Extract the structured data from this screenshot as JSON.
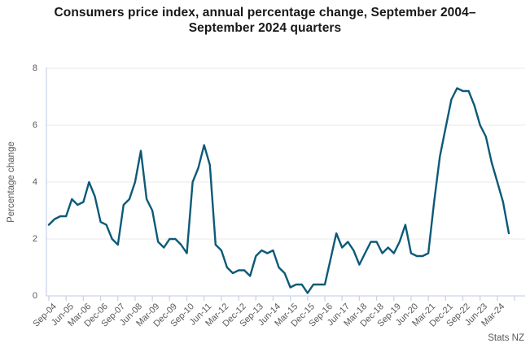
{
  "title": "Consumers price index, annual percentage change, September 2004–September 2024 quarters",
  "source": "Stats NZ",
  "colors": {
    "line": "#0c5a78",
    "gridline": "#e9e9e9",
    "axis": "#ccd3e8",
    "label_text": "#595959",
    "title_text": "#181818",
    "background": "#ffffff"
  },
  "chart_data": {
    "type": "line",
    "title": "Consumers price index, annual percentage change, September 2004–September 2024 quarters",
    "xlabel": "",
    "ylabel": "Percentage change",
    "ylim": [
      0,
      8
    ],
    "yticks": [
      0,
      2,
      4,
      6,
      8
    ],
    "grid": "horizontal",
    "legend": "none",
    "series_name": "CPI annual percentage change",
    "label_every": 3,
    "x_labels": [
      "Sep-04",
      "Jun-05",
      "Mar-06",
      "Dec-06",
      "Sep-07",
      "Jun-08",
      "Mar-09",
      "Dec-09",
      "Sep-10",
      "Jun-11",
      "Mar-12",
      "Dec-12",
      "Sep-13",
      "Jun-14",
      "Mar-15",
      "Dec-15",
      "Sep-16",
      "Jun-17",
      "Mar-18",
      "Dec-18",
      "Sep-19",
      "Jun-20",
      "Mar-21",
      "Dec-21",
      "Sep-22",
      "Jun-23",
      "Mar-24"
    ],
    "x": [
      "Sep-04",
      "Dec-04",
      "Mar-05",
      "Jun-05",
      "Sep-05",
      "Dec-05",
      "Mar-06",
      "Jun-06",
      "Sep-06",
      "Dec-06",
      "Mar-07",
      "Jun-07",
      "Sep-07",
      "Dec-07",
      "Mar-08",
      "Jun-08",
      "Sep-08",
      "Dec-08",
      "Mar-09",
      "Jun-09",
      "Sep-09",
      "Dec-09",
      "Mar-10",
      "Jun-10",
      "Sep-10",
      "Dec-10",
      "Mar-11",
      "Jun-11",
      "Sep-11",
      "Dec-11",
      "Mar-12",
      "Jun-12",
      "Sep-12",
      "Dec-12",
      "Mar-13",
      "Jun-13",
      "Sep-13",
      "Dec-13",
      "Mar-14",
      "Jun-14",
      "Sep-14",
      "Dec-14",
      "Mar-15",
      "Jun-15",
      "Sep-15",
      "Dec-15",
      "Mar-16",
      "Jun-16",
      "Sep-16",
      "Dec-16",
      "Mar-17",
      "Jun-17",
      "Sep-17",
      "Dec-17",
      "Mar-18",
      "Jun-18",
      "Sep-18",
      "Dec-18",
      "Mar-19",
      "Jun-19",
      "Sep-19",
      "Dec-19",
      "Mar-20",
      "Jun-20",
      "Sep-20",
      "Dec-20",
      "Mar-21",
      "Jun-21",
      "Sep-21",
      "Dec-21",
      "Mar-22",
      "Jun-22",
      "Sep-22",
      "Dec-22",
      "Mar-23",
      "Jun-23",
      "Sep-23",
      "Dec-23",
      "Mar-24",
      "Jun-24",
      "Sep-24"
    ],
    "values": [
      2.5,
      2.7,
      2.8,
      2.8,
      3.4,
      3.2,
      3.3,
      4.0,
      3.5,
      2.6,
      2.5,
      2.0,
      1.8,
      3.2,
      3.4,
      4.0,
      5.1,
      3.4,
      3.0,
      1.9,
      1.7,
      2.0,
      2.0,
      1.8,
      1.5,
      4.0,
      4.5,
      5.3,
      4.6,
      1.8,
      1.6,
      1.0,
      0.8,
      0.9,
      0.9,
      0.7,
      1.4,
      1.6,
      1.5,
      1.6,
      1.0,
      0.8,
      0.3,
      0.4,
      0.4,
      0.1,
      0.4,
      0.4,
      0.4,
      1.3,
      2.2,
      1.7,
      1.9,
      1.6,
      1.1,
      1.5,
      1.9,
      1.9,
      1.5,
      1.7,
      1.5,
      1.9,
      2.5,
      1.5,
      1.4,
      1.4,
      1.5,
      3.3,
      4.9,
      5.9,
      6.9,
      7.3,
      7.2,
      7.2,
      6.7,
      6.0,
      5.6,
      4.7,
      4.0,
      3.3,
      2.2
    ],
    "source": "Stats NZ"
  }
}
